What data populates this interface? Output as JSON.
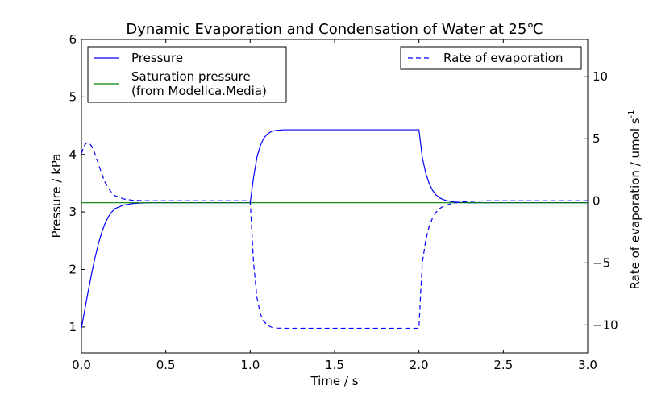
{
  "chart_data": {
    "type": "line",
    "title": "Dynamic Evaporation and Condensation of Water at 25℃",
    "xlabel": "Time / s",
    "ylabel_left": "Pressure / kPa",
    "ylabel_right": "Rate of evaporation / umol s",
    "ylabel_right_sup": "-1",
    "xlim": [
      0,
      3
    ],
    "ylim_left": [
      0.55,
      6
    ],
    "ylim_right": [
      -12.25,
      13
    ],
    "xticks": [
      0,
      0.5,
      1,
      1.5,
      2,
      2.5,
      3
    ],
    "xtick_labels": [
      "0.0",
      "0.5",
      "1.0",
      "1.5",
      "2.0",
      "2.5",
      "3.0"
    ],
    "yticks_left": [
      1,
      2,
      3,
      4,
      5,
      6
    ],
    "ytick_labels_left": [
      "1",
      "2",
      "3",
      "4",
      "5",
      "6"
    ],
    "yticks_right": [
      -10,
      -5,
      0,
      5,
      10
    ],
    "ytick_labels_right": [
      "−10",
      "−5",
      "0",
      "5",
      "10"
    ],
    "grid": false,
    "series": [
      {
        "name": "Pressure",
        "axis": "left",
        "color": "#0000ff",
        "style": "solid",
        "x": [
          0,
          0.02,
          0.04,
          0.06,
          0.08,
          0.1,
          0.12,
          0.14,
          0.16,
          0.18,
          0.2,
          0.25,
          0.3,
          0.35,
          0.4,
          0.5,
          0.6,
          0.8,
          1.0,
          1.02,
          1.04,
          1.06,
          1.08,
          1.1,
          1.12,
          1.14,
          1.16,
          1.2,
          1.25,
          1.3,
          1.4,
          1.5,
          1.7,
          1.9,
          2.0,
          2.02,
          2.04,
          2.06,
          2.08,
          2.1,
          2.12,
          2.14,
          2.16,
          2.2,
          2.25,
          2.3,
          2.4,
          2.6,
          2.8,
          3.0
        ],
        "y": [
          0.98,
          1.3,
          1.62,
          1.92,
          2.2,
          2.44,
          2.64,
          2.8,
          2.92,
          3.0,
          3.06,
          3.12,
          3.145,
          3.155,
          3.16,
          3.16,
          3.16,
          3.16,
          3.16,
          3.6,
          3.95,
          4.15,
          4.28,
          4.35,
          4.39,
          4.41,
          4.42,
          4.43,
          4.43,
          4.43,
          4.43,
          4.43,
          4.43,
          4.43,
          4.43,
          3.95,
          3.68,
          3.5,
          3.38,
          3.3,
          3.25,
          3.22,
          3.2,
          3.175,
          3.165,
          3.16,
          3.16,
          3.16,
          3.16,
          3.16
        ]
      },
      {
        "name": "Saturation pressure\n(from Modelica.Media)",
        "axis": "left",
        "color": "#008000",
        "style": "solid",
        "x": [
          0,
          3
        ],
        "y": [
          3.16,
          3.16
        ]
      },
      {
        "name": "Rate of evaporation",
        "axis": "right",
        "color": "#0000ff",
        "style": "dashed",
        "x": [
          0,
          0.01,
          0.02,
          0.03,
          0.04,
          0.05,
          0.06,
          0.08,
          0.1,
          0.12,
          0.14,
          0.16,
          0.18,
          0.2,
          0.25,
          0.3,
          0.35,
          0.4,
          0.5,
          0.7,
          1.0,
          1.01,
          1.02,
          1.04,
          1.06,
          1.08,
          1.1,
          1.12,
          1.14,
          1.16,
          1.2,
          1.3,
          1.5,
          1.7,
          1.9,
          2.0,
          2.01,
          2.02,
          2.04,
          2.06,
          2.08,
          2.1,
          2.12,
          2.15,
          2.2,
          2.25,
          2.3,
          2.4,
          2.6,
          2.8,
          3.0
        ],
        "y": [
          3.8,
          4.2,
          4.5,
          4.65,
          4.7,
          4.6,
          4.4,
          3.8,
          3.0,
          2.2,
          1.5,
          1.0,
          0.65,
          0.4,
          0.15,
          0.05,
          0.02,
          0.0,
          0.0,
          0.0,
          0.0,
          -2.5,
          -5.0,
          -7.8,
          -9.1,
          -9.7,
          -10.0,
          -10.15,
          -10.22,
          -10.25,
          -10.27,
          -10.27,
          -10.27,
          -10.27,
          -10.27,
          -10.27,
          -7.5,
          -5.0,
          -3.2,
          -2.1,
          -1.4,
          -0.95,
          -0.65,
          -0.4,
          -0.2,
          -0.1,
          -0.05,
          0.0,
          0.0,
          0.0,
          0.0
        ]
      }
    ],
    "legend_left_entries": [
      "Pressure",
      "Saturation pressure",
      "(from Modelica.Media)"
    ],
    "legend_right_entries": [
      "Rate of evaporation"
    ],
    "legend_left_placement": "upper-left",
    "legend_right_placement": "upper-right"
  }
}
